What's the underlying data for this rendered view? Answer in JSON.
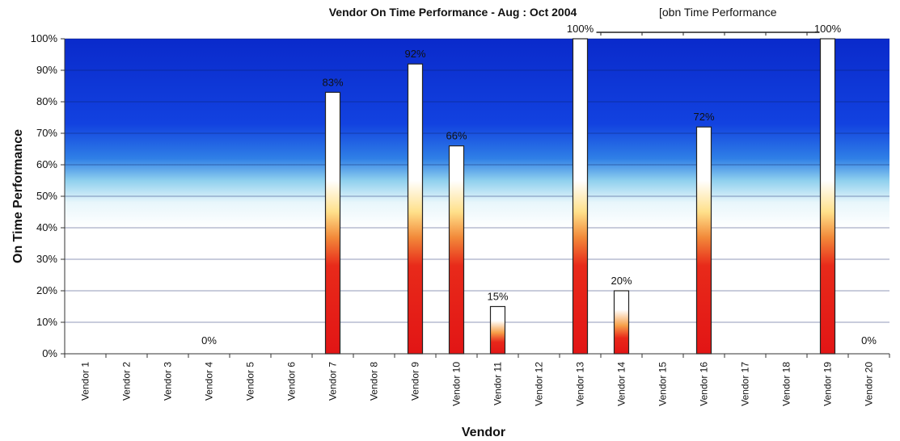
{
  "chart_data": {
    "type": "bar",
    "title": "Vendor On Time Performance - Aug : Oct 2004",
    "legend": {
      "label": "[obn Time Performance",
      "placement": "top-right"
    },
    "xlabel": "Vendor",
    "ylabel": "On Time Performance",
    "ylim": [
      0,
      100
    ],
    "y_ticks": [
      "0%",
      "10%",
      "20%",
      "30%",
      "40%",
      "50%",
      "60%",
      "70%",
      "80%",
      "90%",
      "100%"
    ],
    "grid": true,
    "categories": [
      "Vendor 1",
      "Vendor 2",
      "Vendor 3",
      "Vendor 4",
      "Vendor 5",
      "Vendor 6",
      "Vendor 7",
      "Vendor 8",
      "Vendor 9",
      "Vendor 10",
      "Vendor 11",
      "Vendor 12",
      "Vendor 13",
      "Vendor 14",
      "Vendor 15",
      "Vendor 16",
      "Vendor 17",
      "Vendor 18",
      "Vendor 19",
      "Vendor 20"
    ],
    "values": [
      0,
      0,
      0,
      0,
      0,
      0,
      83,
      0,
      92,
      66,
      15,
      0,
      100,
      20,
      0,
      72,
      0,
      0,
      100,
      0
    ],
    "data_labels": [
      {
        "category": "Vendor 4",
        "text": "0%"
      },
      {
        "category": "Vendor 7",
        "text": "83%"
      },
      {
        "category": "Vendor 9",
        "text": "92%"
      },
      {
        "category": "Vendor 10",
        "text": "66%"
      },
      {
        "category": "Vendor 11",
        "text": "15%"
      },
      {
        "category": "Vendor 13",
        "text": "100%"
      },
      {
        "category": "Vendor 14",
        "text": "20%"
      },
      {
        "category": "Vendor 16",
        "text": "72%"
      },
      {
        "category": "Vendor 19",
        "text": "100%"
      },
      {
        "category": "Vendor 20",
        "text": "0%"
      }
    ],
    "colors": {
      "background_top": "#0a2fd0",
      "background_bottom": "#ffffff",
      "bar_top": "#ffffff",
      "bar_bottom": "#e81818"
    }
  }
}
